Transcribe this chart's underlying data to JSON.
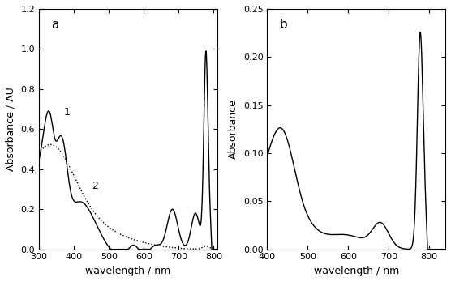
{
  "panel_a": {
    "xlim": [
      300,
      810
    ],
    "ylim": [
      0,
      1.2
    ],
    "xlabel": "wavelength / nm",
    "ylabel": "Absorbance / AU",
    "label_a": "a",
    "label_1": "1",
    "label_2": "2",
    "yticks": [
      0.0,
      0.2,
      0.4,
      0.6,
      0.8,
      1.0,
      1.2
    ],
    "xticks": [
      300,
      400,
      500,
      600,
      700,
      800
    ]
  },
  "panel_b": {
    "xlim": [
      400,
      840
    ],
    "ylim": [
      0.0,
      0.25
    ],
    "xlabel": "wavelength / nm",
    "ylabel": "Absorbance",
    "label_b": "b",
    "yticks": [
      0.0,
      0.05,
      0.1,
      0.15,
      0.2,
      0.25
    ],
    "xticks": [
      400,
      500,
      600,
      700,
      800
    ]
  },
  "line_color": "#000000",
  "bg_color": "#ffffff"
}
